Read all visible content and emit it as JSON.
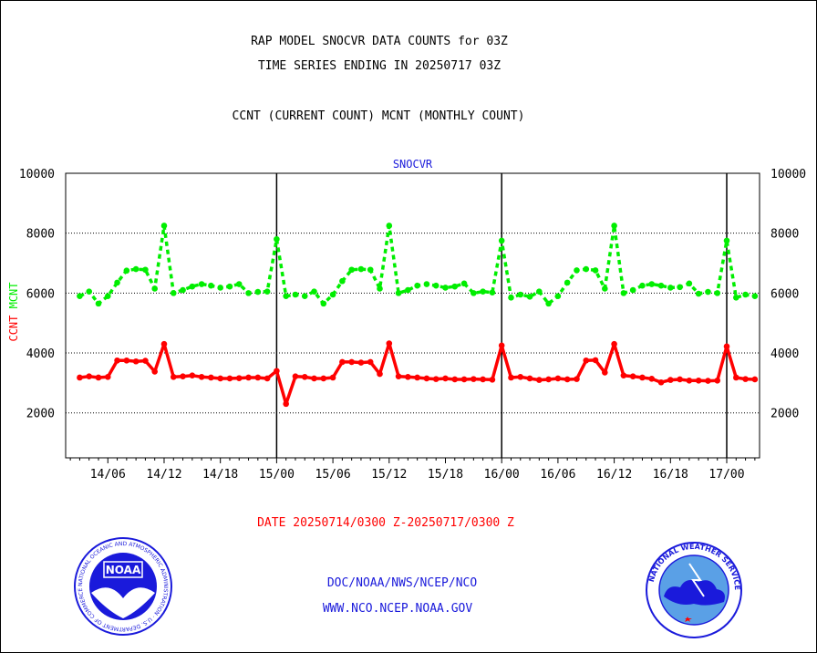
{
  "header": {
    "title_line1": "RAP MODEL SNOCVR DATA COUNTS for 03Z",
    "title_line2": "TIME SERIES ENDING IN 20250717 03Z",
    "subtitle": "CCNT (CURRENT COUNT) MCNT (MONTHLY COUNT)"
  },
  "footer": {
    "date_range": "DATE 20250714/0300 Z-20250717/0300 Z",
    "doc_link": "DOC/NOAA/NWS/NCEP/NCO",
    "www_link": "WWW.NCO.NCEP.NOAA.GOV"
  },
  "colors": {
    "ccnt": "#ff0000",
    "mcnt": "#00ee00",
    "axis": "#000000",
    "panel_title": "#1a1adb"
  },
  "logos": {
    "noaa": {
      "icon": "noaa-logo",
      "text": "NOAA",
      "ring_text": "NATIONAL OCEANIC AND ATMOSPHERIC ADMINISTRATION · U.S. DEPARTMENT OF COMMERCE"
    },
    "nws": {
      "icon": "nws-logo",
      "ring_text": "NATIONAL WEATHER SERVICE"
    }
  },
  "chart_data": {
    "type": "line",
    "panel_title": "SNOCVR",
    "ylabel_left": [
      "CCNT",
      "MCNT"
    ],
    "ylim": [
      500,
      10000
    ],
    "yticks": [
      2000,
      4000,
      6000,
      8000,
      10000
    ],
    "ytick_labels": [
      "2000",
      "4000",
      "6000",
      "8000",
      "10000"
    ],
    "x_start_hour": 0,
    "x_end_hour": 72,
    "xlim_hours": [
      -1.5,
      72.5
    ],
    "xticks": [
      {
        "hour": 3,
        "label": "14/06"
      },
      {
        "hour": 9,
        "label": "14/12"
      },
      {
        "hour": 15,
        "label": "14/18"
      },
      {
        "hour": 21,
        "label": "15/00"
      },
      {
        "hour": 27,
        "label": "15/06"
      },
      {
        "hour": 33,
        "label": "15/12"
      },
      {
        "hour": 39,
        "label": "15/18"
      },
      {
        "hour": 45,
        "label": "16/00"
      },
      {
        "hour": 51,
        "label": "16/06"
      },
      {
        "hour": 57,
        "label": "16/12"
      },
      {
        "hour": 63,
        "label": "16/18"
      },
      {
        "hour": 69,
        "label": "17/00"
      }
    ],
    "day_boundaries": [
      21,
      45,
      69
    ],
    "grid": "horizontal-dotted",
    "series": [
      {
        "name": "CCNT",
        "style": "solid",
        "values": [
          3180,
          3220,
          3180,
          3200,
          3750,
          3750,
          3720,
          3740,
          3380,
          4300,
          3200,
          3220,
          3250,
          3200,
          3180,
          3150,
          3150,
          3160,
          3180,
          3180,
          3150,
          3400,
          2300,
          3220,
          3200,
          3150,
          3150,
          3180,
          3700,
          3700,
          3680,
          3700,
          3300,
          4320,
          3220,
          3200,
          3180,
          3150,
          3130,
          3150,
          3120,
          3120,
          3130,
          3120,
          3110,
          4250,
          3180,
          3200,
          3150,
          3100,
          3120,
          3150,
          3120,
          3130,
          3750,
          3760,
          3350,
          4300,
          3250,
          3220,
          3180,
          3140,
          3020,
          3100,
          3120,
          3080,
          3080,
          3070,
          3080,
          4220,
          3180,
          3130,
          3120
        ]
      },
      {
        "name": "MCNT",
        "style": "dashed",
        "values": [
          5900,
          6050,
          5650,
          5900,
          6350,
          6750,
          6800,
          6780,
          6150,
          8250,
          6000,
          6100,
          6220,
          6300,
          6250,
          6180,
          6220,
          6300,
          6000,
          6040,
          6050,
          7800,
          5900,
          5950,
          5900,
          6050,
          5650,
          5950,
          6400,
          6780,
          6800,
          6780,
          6150,
          8250,
          6000,
          6100,
          6250,
          6300,
          6250,
          6180,
          6220,
          6320,
          6000,
          6050,
          6020,
          7750,
          5850,
          5950,
          5880,
          6050,
          5650,
          5900,
          6350,
          6760,
          6800,
          6760,
          6150,
          8250,
          6000,
          6100,
          6250,
          6300,
          6250,
          6180,
          6200,
          6320,
          5980,
          6040,
          6000,
          7750,
          5850,
          5950,
          5900
        ]
      }
    ]
  }
}
